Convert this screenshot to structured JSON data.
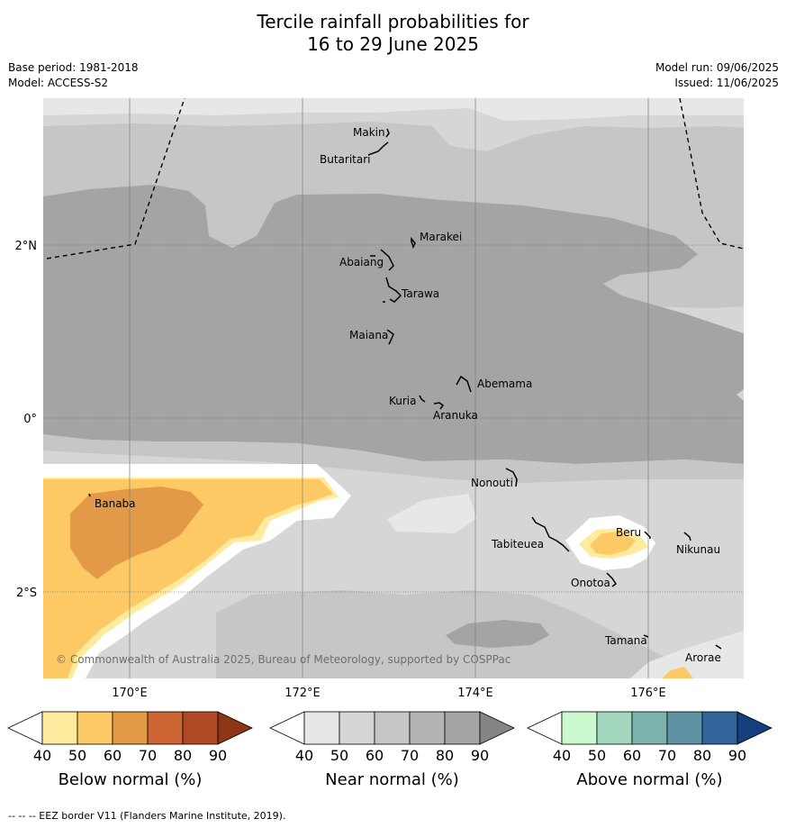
{
  "title_line1": "Tercile rainfall probabilities for",
  "title_line2": "16 to 29 June 2025",
  "meta": {
    "base_period": "Base period: 1981-2018",
    "model": "Model: ACCESS-S2",
    "model_run": "Model run: 09/06/2025",
    "issued": "Issued: 11/06/2025"
  },
  "map": {
    "lat_labels": [
      "2°N",
      "0°",
      "2°S"
    ],
    "lon_labels": [
      "170°E",
      "172°E",
      "174°E",
      "176°E"
    ],
    "places": [
      "Makin",
      "Butaritari",
      "Marakei",
      "Abaiang",
      "Tarawa",
      "Maiana",
      "Abemama",
      "Kuria",
      "Aranuka",
      "Nonouti",
      "Banaba",
      "Tabiteuea",
      "Beru",
      "Nikunau",
      "Onotoa",
      "Tamana",
      "Arorae"
    ],
    "copyright": "© Commonwealth of Australia 2025, Bureau of Meteorology, supported by COSPPac"
  },
  "legends": [
    {
      "label": "Below normal (%)",
      "ticks": [
        "40",
        "50",
        "60",
        "70",
        "80",
        "90"
      ],
      "colors": [
        "#ffffff",
        "#ffeb9e",
        "#fdc964",
        "#e29a48",
        "#cd6434",
        "#b04a26",
        "#8e3516"
      ]
    },
    {
      "label": "Near normal (%)",
      "ticks": [
        "40",
        "50",
        "60",
        "70",
        "80",
        "90"
      ],
      "colors": [
        "#ffffff",
        "#e7e7e7",
        "#d6d6d6",
        "#c6c6c6",
        "#b4b4b4",
        "#a4a4a4",
        "#858585"
      ]
    },
    {
      "label": "Above normal (%)",
      "ticks": [
        "40",
        "50",
        "60",
        "70",
        "80",
        "90"
      ],
      "colors": [
        "#ffffff",
        "#caf9cd",
        "#a2d7bd",
        "#7db3ad",
        "#5f92a2",
        "#31659a",
        "#143e7c"
      ]
    }
  ],
  "footer": "-- -- -- EEZ border V11 (Flanders Marine Institute, 2019)."
}
